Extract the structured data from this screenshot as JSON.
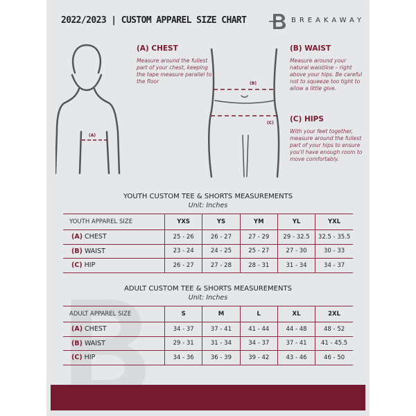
{
  "header": {
    "title": "2022/2023  |  CUSTOM APPAREL SIZE CHART",
    "brand": "BREAKAWAY",
    "logo_letter": "B"
  },
  "guide": {
    "chest": {
      "heading": "(A) CHEST",
      "text": "Measure around the fullest part of your chest, keeping the tape measure parallel to the floor",
      "marker": "(A)"
    },
    "waist": {
      "heading": "(B) WAIST",
      "text": "Measure around your natural waistline – right above your hips. Be careful not to squeeze too tight to allow a little give.",
      "marker": "(B)"
    },
    "hips": {
      "heading": "(C) HIPS",
      "text": "With your feet together, measure around the fullest part of your hips to ensure you'll have enough room to move comfortably.",
      "marker": "(C)"
    }
  },
  "accent": "#761a2f",
  "youth": {
    "title": "YOUTH CUSTOM TEE & SHORTS MEASUREMENTS",
    "unit": "Unit: Inches",
    "header": "YOUTH APPAREL SIZE",
    "sizes": [
      "YXS",
      "YS",
      "YM",
      "YL",
      "YXL"
    ],
    "rows": [
      {
        "code": "(A)",
        "label": "CHEST",
        "values": [
          "25 - 26",
          "26 - 27",
          "27 - 29",
          "29 - 32.5",
          "32.5 - 35.5"
        ]
      },
      {
        "code": "(B)",
        "label": "WAIST",
        "values": [
          "23 - 24",
          "24 - 25",
          "25 - 27",
          "27 - 30",
          "30 - 33"
        ]
      },
      {
        "code": "(C)",
        "label": "HIP",
        "values": [
          "26 - 27",
          "27 - 28",
          "28 - 31",
          "31 - 34",
          "34 - 37"
        ]
      }
    ]
  },
  "adult": {
    "title": "ADULT CUSTOM TEE & SHORTS MEASUREMENTS",
    "unit": "Unit: Inches",
    "header": "ADULT APPAREL SIZE",
    "sizes": [
      "S",
      "M",
      "L",
      "XL",
      "2XL"
    ],
    "rows": [
      {
        "code": "(A)",
        "label": "CHEST",
        "values": [
          "34 - 37",
          "37 - 41",
          "41 - 44",
          "44 - 48",
          "48 - 52"
        ]
      },
      {
        "code": "(B)",
        "label": "WAIST",
        "values": [
          "29 - 31",
          "31 - 34",
          "34 - 37",
          "37 - 41",
          "41 - 45.5"
        ]
      },
      {
        "code": "(C)",
        "label": "HIP",
        "values": [
          "34 - 36",
          "36 - 39",
          "39 - 42",
          "43 - 46",
          "46 - 50"
        ]
      }
    ]
  }
}
